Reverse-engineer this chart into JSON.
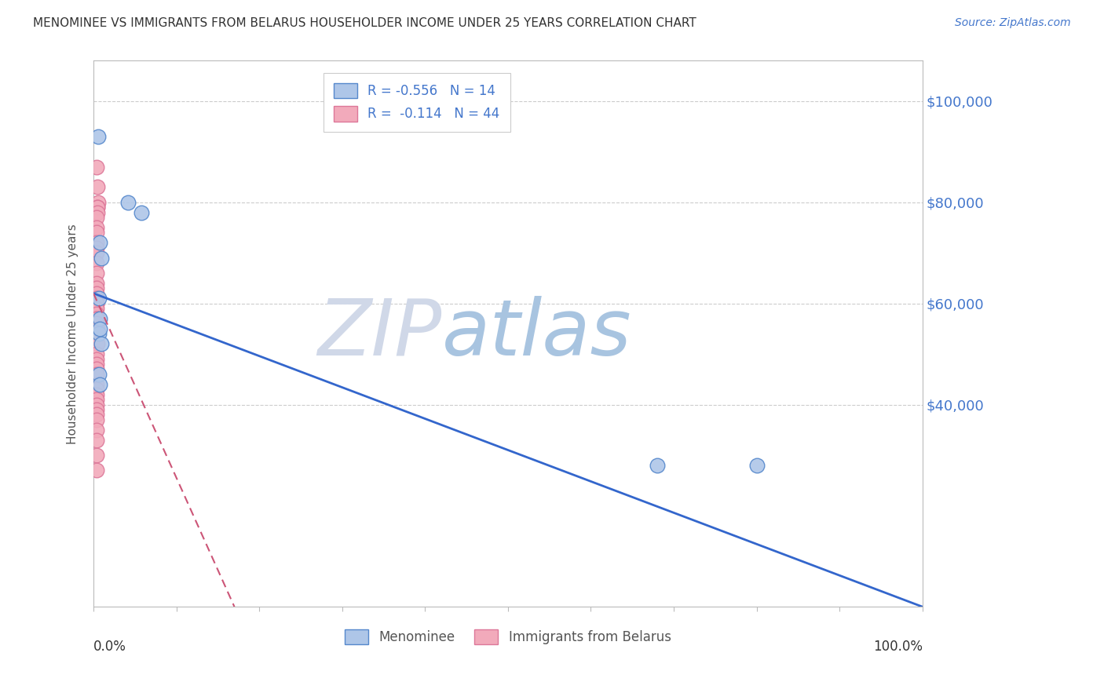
{
  "title": "MENOMINEE VS IMMIGRANTS FROM BELARUS HOUSEHOLDER INCOME UNDER 25 YEARS CORRELATION CHART",
  "source": "Source: ZipAtlas.com",
  "ylabel": "Householder Income Under 25 years",
  "ytick_values": [
    40000,
    60000,
    80000,
    100000
  ],
  "menominee_color": "#aec6e8",
  "belarus_color": "#f2aabb",
  "menominee_edge": "#5588cc",
  "belarus_edge": "#dd7799",
  "trend_menominee_color": "#3366cc",
  "trend_belarus_color": "#cc5577",
  "background_color": "#ffffff",
  "grid_color": "#cccccc",
  "axis_color": "#bbbbbb",
  "tick_label_color": "#4477cc",
  "title_color": "#333333",
  "watermark_zip_color": "#d0d8e8",
  "watermark_atlas_color": "#a8c4e0",
  "menominee_x": [
    0.006,
    0.042,
    0.058,
    0.008,
    0.009,
    0.007,
    0.008,
    0.007,
    0.009,
    0.007,
    0.008,
    0.68,
    0.8,
    0.008
  ],
  "menominee_y": [
    93000,
    80000,
    78000,
    72000,
    69000,
    61000,
    57000,
    54000,
    52000,
    46000,
    44000,
    28000,
    28000,
    55000
  ],
  "belarus_x": [
    0.004,
    0.005,
    0.006,
    0.005,
    0.005,
    0.005,
    0.004,
    0.004,
    0.004,
    0.004,
    0.004,
    0.004,
    0.004,
    0.004,
    0.004,
    0.004,
    0.004,
    0.004,
    0.004,
    0.004,
    0.004,
    0.004,
    0.004,
    0.004,
    0.004,
    0.005,
    0.005,
    0.004,
    0.004,
    0.004,
    0.004,
    0.004,
    0.004,
    0.004,
    0.004,
    0.004,
    0.004,
    0.004,
    0.004,
    0.004,
    0.004,
    0.004,
    0.004,
    0.004
  ],
  "belarus_y": [
    87000,
    83000,
    80000,
    79000,
    79000,
    78000,
    77000,
    75000,
    74000,
    72000,
    71000,
    70000,
    68000,
    66000,
    64000,
    63000,
    62000,
    61000,
    60000,
    60000,
    59000,
    58000,
    57000,
    57000,
    56000,
    55000,
    52000,
    50000,
    49000,
    48000,
    47000,
    46000,
    44000,
    43000,
    42000,
    41000,
    40000,
    39000,
    38000,
    37000,
    35000,
    33000,
    30000,
    27000
  ],
  "xlim": [
    0.0,
    1.0
  ],
  "ylim": [
    0,
    108000
  ],
  "menominee_trend_x": [
    0.0,
    1.0
  ],
  "menominee_trend_y": [
    62000,
    0
  ],
  "belarus_trend_x": [
    0.0,
    0.17
  ],
  "belarus_trend_y": [
    62000,
    0
  ]
}
